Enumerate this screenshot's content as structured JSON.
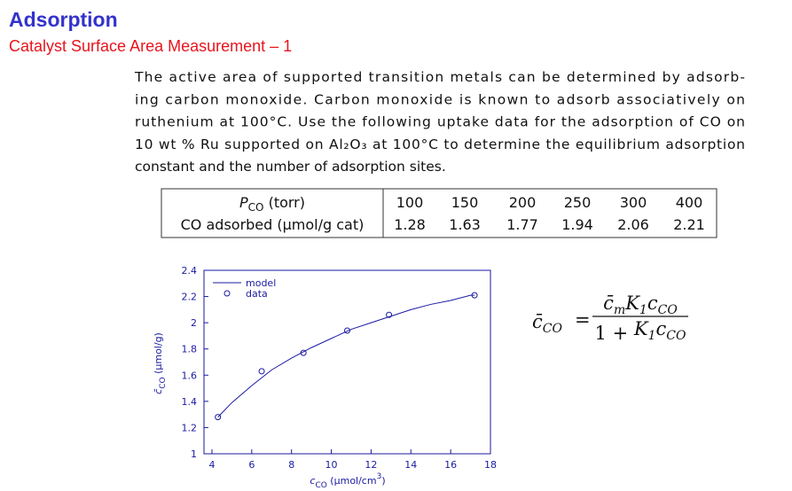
{
  "header": {
    "title": "Adsorption",
    "subtitle": "Catalyst Surface Area Measurement – 1"
  },
  "paragraph": {
    "lines": [
      "The active area of supported transition metals can be determined by adsorb-",
      "ing carbon monoxide.  Carbon monoxide is known to adsorb associatively on",
      "ruthenium at 100°C. Use the following uptake data for the adsorption of CO on",
      "10 wt % Ru supported on Al₂O₃ at 100°C to determine the equilibrium adsorption",
      "constant and the number of adsorption sites."
    ]
  },
  "table": {
    "row_headers": [
      [
        "P",
        "CO",
        " (torr)"
      ],
      [
        "CO adsorbed (µmol/g cat)"
      ]
    ],
    "rows": [
      [
        100,
        150,
        200,
        250,
        300,
        400
      ],
      [
        1.28,
        1.63,
        1.77,
        1.94,
        2.06,
        2.21
      ]
    ]
  },
  "chart": {
    "type": "scatter",
    "xlabel": [
      "c",
      "CO",
      " (µmol/cm",
      "3",
      ")"
    ],
    "ylabel": [
      "c̄",
      "CO",
      " (µmol/g)"
    ],
    "xlim": [
      3.6,
      18
    ],
    "ylim": [
      1,
      2.4
    ],
    "xticks": [
      4,
      6,
      8,
      10,
      12,
      14,
      16,
      18
    ],
    "yticks": [
      1,
      1.2,
      1.4,
      1.6,
      1.8,
      2,
      2.2,
      2.4
    ],
    "model": {
      "name": "model",
      "color": "#1a1aa0",
      "x": [
        4.3,
        5,
        6,
        7,
        8,
        9,
        10,
        11,
        12,
        13,
        14,
        15,
        16,
        17,
        17.2
      ],
      "values": [
        1.28,
        1.39,
        1.52,
        1.64,
        1.73,
        1.81,
        1.88,
        1.95,
        2.0,
        2.05,
        2.1,
        2.14,
        2.17,
        2.21,
        2.21
      ]
    },
    "data": {
      "name": "data",
      "color": "#1a1aa0",
      "x": [
        4.3,
        6.5,
        8.6,
        10.8,
        12.9,
        17.2
      ],
      "values": [
        1.28,
        1.63,
        1.77,
        1.94,
        2.06,
        2.21
      ]
    }
  },
  "equation": {
    "lhs": [
      "c̄",
      "CO"
    ],
    "equals": "=",
    "numerator": [
      "c̄",
      "m",
      "K",
      "1",
      "c",
      "CO"
    ],
    "denominator": [
      "1 + ",
      "",
      "K",
      "1",
      "c",
      "CO"
    ]
  }
}
